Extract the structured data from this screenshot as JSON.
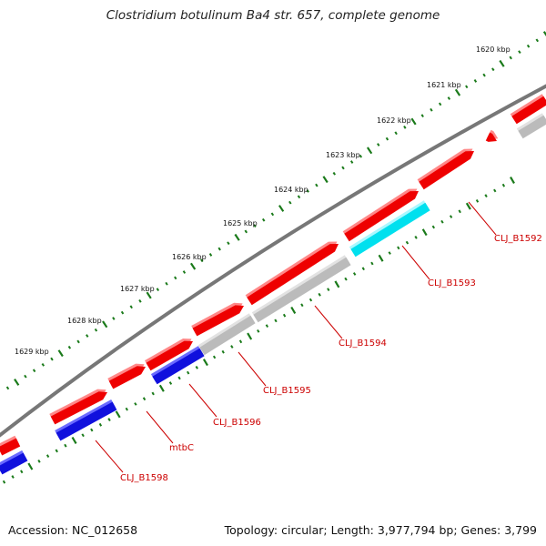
{
  "title": "Clostridium botulinum Ba4 str. 657, complete genome",
  "accession": "Accession: NC_012658",
  "summary": "Topology: circular; Length: 3,977,794 bp; Genes: 3,799",
  "colors": {
    "backbone": "#777777",
    "tick": "#1a7a1a",
    "label": "#cc0000",
    "red_gene": "#ee0000",
    "gray_gene": "#bbbbbb",
    "blue_gene": "#1010dd",
    "cyan_gene": "#00e0ee"
  },
  "ticks": [
    "1620 kbp",
    "1621 kbp",
    "1622 kbp",
    "1623 kbp",
    "1624 kbp",
    "1625 kbp",
    "1626 kbp",
    "1627 kbp",
    "1628 kbp",
    "1629 kbp"
  ],
  "gene_labels": [
    "CLJ_B1592",
    "CLJ_B1593",
    "CLJ_B1594",
    "CLJ_B1595",
    "CLJ_B1596",
    "mtbC",
    "CLJ_B1598"
  ]
}
